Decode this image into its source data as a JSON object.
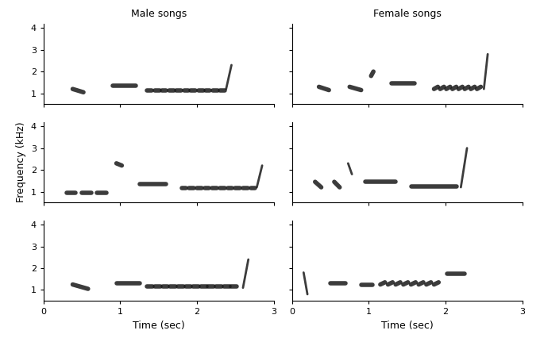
{
  "chart_data": [
    {
      "type": "spectrogram",
      "title": "Male songs",
      "color": "#1a1a1a",
      "xlim": [
        0,
        3
      ],
      "ylim": [
        0.5,
        4.2
      ],
      "xticks": [
        0,
        1,
        2,
        3
      ],
      "yticks": [
        1,
        2,
        3,
        4
      ],
      "tick_labels": "y",
      "notes": [
        {
          "time": [
            0.38,
            0.52
          ],
          "freq": [
            1.2,
            1.05
          ]
        },
        {
          "time": [
            0.9,
            1.2
          ],
          "freq": [
            1.35,
            1.35
          ]
        },
        {
          "time": [
            1.35,
            1.41
          ],
          "freq": [
            1.15,
            1.15
          ]
        },
        {
          "time": [
            1.45,
            1.51
          ],
          "freq": [
            1.15,
            1.15
          ]
        },
        {
          "time": [
            1.54,
            1.6
          ],
          "freq": [
            1.15,
            1.15
          ]
        },
        {
          "time": [
            1.64,
            1.7
          ],
          "freq": [
            1.15,
            1.15
          ]
        },
        {
          "time": [
            1.73,
            1.79
          ],
          "freq": [
            1.15,
            1.15
          ]
        },
        {
          "time": [
            1.83,
            1.89
          ],
          "freq": [
            1.15,
            1.15
          ]
        },
        {
          "time": [
            1.92,
            1.98
          ],
          "freq": [
            1.15,
            1.15
          ]
        },
        {
          "time": [
            2.02,
            2.08
          ],
          "freq": [
            1.15,
            1.15
          ]
        },
        {
          "time": [
            2.11,
            2.17
          ],
          "freq": [
            1.15,
            1.15
          ]
        },
        {
          "time": [
            2.21,
            2.27
          ],
          "freq": [
            1.15,
            1.15
          ]
        },
        {
          "time": [
            2.3,
            2.36
          ],
          "freq": [
            1.15,
            1.15
          ]
        },
        {
          "time": [
            2.38,
            2.45
          ],
          "freq": [
            1.2,
            2.3
          ]
        }
      ]
    },
    {
      "type": "spectrogram",
      "title": "Female songs",
      "color": "#1a1a1a",
      "xlim": [
        0,
        3
      ],
      "ylim": [
        0.5,
        4.2
      ],
      "xticks": [
        0,
        1,
        2,
        3
      ],
      "yticks": [
        1,
        2,
        3,
        4
      ],
      "tick_labels": false,
      "notes": [
        {
          "time": [
            0.35,
            0.48
          ],
          "freq": [
            1.3,
            1.15
          ]
        },
        {
          "time": [
            0.75,
            0.9
          ],
          "freq": [
            1.3,
            1.15
          ]
        },
        {
          "time": [
            1.03,
            1.06
          ],
          "freq": [
            1.8,
            2.0
          ]
        },
        {
          "time": [
            1.3,
            1.6
          ],
          "freq": [
            1.45,
            1.45
          ]
        },
        {
          "time": [
            1.85,
            1.9
          ],
          "freq": [
            1.2,
            1.3
          ]
        },
        {
          "time": [
            1.93,
            1.98
          ],
          "freq": [
            1.2,
            1.3
          ]
        },
        {
          "time": [
            2.01,
            2.06
          ],
          "freq": [
            1.2,
            1.3
          ]
        },
        {
          "time": [
            2.09,
            2.14
          ],
          "freq": [
            1.2,
            1.3
          ]
        },
        {
          "time": [
            2.17,
            2.22
          ],
          "freq": [
            1.2,
            1.3
          ]
        },
        {
          "time": [
            2.25,
            2.3
          ],
          "freq": [
            1.2,
            1.3
          ]
        },
        {
          "time": [
            2.33,
            2.38
          ],
          "freq": [
            1.2,
            1.3
          ]
        },
        {
          "time": [
            2.41,
            2.46
          ],
          "freq": [
            1.2,
            1.3
          ]
        },
        {
          "time": [
            2.5,
            2.55
          ],
          "freq": [
            1.2,
            2.8
          ]
        }
      ]
    },
    {
      "type": "spectrogram",
      "y_label": "Frequency (kHz)",
      "color": "#1a1a1a",
      "xlim": [
        0,
        3
      ],
      "ylim": [
        0.5,
        4.2
      ],
      "xticks": [
        0,
        1,
        2,
        3
      ],
      "yticks": [
        1,
        2,
        3,
        4
      ],
      "tick_labels": "y",
      "notes": [
        {
          "time": [
            0.3,
            0.42
          ],
          "freq": [
            0.95,
            0.95
          ]
        },
        {
          "time": [
            0.5,
            0.62
          ],
          "freq": [
            0.95,
            0.95
          ]
        },
        {
          "time": [
            0.7,
            0.82
          ],
          "freq": [
            0.95,
            0.95
          ]
        },
        {
          "time": [
            0.95,
            1.02
          ],
          "freq": [
            2.3,
            2.2
          ]
        },
        {
          "time": [
            1.25,
            1.6
          ],
          "freq": [
            1.35,
            1.35
          ]
        },
        {
          "time": [
            1.8,
            1.86
          ],
          "freq": [
            1.15,
            1.15
          ]
        },
        {
          "time": [
            1.9,
            1.96
          ],
          "freq": [
            1.15,
            1.15
          ]
        },
        {
          "time": [
            2.0,
            2.06
          ],
          "freq": [
            1.15,
            1.15
          ]
        },
        {
          "time": [
            2.1,
            2.16
          ],
          "freq": [
            1.15,
            1.15
          ]
        },
        {
          "time": [
            2.2,
            2.26
          ],
          "freq": [
            1.15,
            1.15
          ]
        },
        {
          "time": [
            2.3,
            2.36
          ],
          "freq": [
            1.15,
            1.15
          ]
        },
        {
          "time": [
            2.4,
            2.46
          ],
          "freq": [
            1.15,
            1.15
          ]
        },
        {
          "time": [
            2.5,
            2.56
          ],
          "freq": [
            1.15,
            1.15
          ]
        },
        {
          "time": [
            2.6,
            2.66
          ],
          "freq": [
            1.15,
            1.15
          ]
        },
        {
          "time": [
            2.7,
            2.76
          ],
          "freq": [
            1.15,
            1.15
          ]
        },
        {
          "time": [
            2.78,
            2.85
          ],
          "freq": [
            1.2,
            2.2
          ]
        }
      ]
    },
    {
      "type": "spectrogram",
      "color": "#1a1a1a",
      "xlim": [
        0,
        3
      ],
      "ylim": [
        0.5,
        4.2
      ],
      "xticks": [
        0,
        1,
        2,
        3
      ],
      "yticks": [
        1,
        2,
        3,
        4
      ],
      "tick_labels": false,
      "notes": [
        {
          "time": [
            0.3,
            0.38
          ],
          "freq": [
            1.45,
            1.2
          ]
        },
        {
          "time": [
            0.55,
            0.62
          ],
          "freq": [
            1.45,
            1.2
          ]
        },
        {
          "time": [
            0.73,
            0.78
          ],
          "freq": [
            2.3,
            1.8
          ]
        },
        {
          "time": [
            0.95,
            1.35
          ],
          "freq": [
            1.45,
            1.45
          ]
        },
        {
          "time": [
            1.55,
            2.15
          ],
          "freq": [
            1.25,
            1.25
          ]
        },
        {
          "time": [
            2.2,
            2.28
          ],
          "freq": [
            1.2,
            3.0
          ]
        }
      ]
    },
    {
      "type": "spectrogram",
      "x_label": "Time (sec)",
      "color": "#1a1a1a",
      "xlim": [
        0,
        3
      ],
      "ylim": [
        0.5,
        4.2
      ],
      "xticks": [
        0,
        1,
        2,
        3
      ],
      "yticks": [
        1,
        2,
        3,
        4
      ],
      "tick_labels": true,
      "notes": [
        {
          "time": [
            0.38,
            0.58
          ],
          "freq": [
            1.25,
            1.05
          ]
        },
        {
          "time": [
            0.95,
            1.25
          ],
          "freq": [
            1.3,
            1.3
          ]
        },
        {
          "time": [
            1.35,
            1.42
          ],
          "freq": [
            1.15,
            1.15
          ]
        },
        {
          "time": [
            1.45,
            1.52
          ],
          "freq": [
            1.15,
            1.15
          ]
        },
        {
          "time": [
            1.55,
            1.62
          ],
          "freq": [
            1.15,
            1.15
          ]
        },
        {
          "time": [
            1.65,
            1.72
          ],
          "freq": [
            1.15,
            1.15
          ]
        },
        {
          "time": [
            1.75,
            1.82
          ],
          "freq": [
            1.15,
            1.15
          ]
        },
        {
          "time": [
            1.85,
            1.92
          ],
          "freq": [
            1.15,
            1.15
          ]
        },
        {
          "time": [
            1.95,
            2.02
          ],
          "freq": [
            1.15,
            1.15
          ]
        },
        {
          "time": [
            2.05,
            2.12
          ],
          "freq": [
            1.15,
            1.15
          ]
        },
        {
          "time": [
            2.15,
            2.22
          ],
          "freq": [
            1.15,
            1.15
          ]
        },
        {
          "time": [
            2.25,
            2.32
          ],
          "freq": [
            1.15,
            1.15
          ]
        },
        {
          "time": [
            2.35,
            2.42
          ],
          "freq": [
            1.15,
            1.15
          ]
        },
        {
          "time": [
            2.45,
            2.52
          ],
          "freq": [
            1.15,
            1.15
          ]
        },
        {
          "time": [
            2.6,
            2.67
          ],
          "freq": [
            1.1,
            2.4
          ]
        }
      ]
    },
    {
      "type": "spectrogram",
      "x_label": "Time (sec)",
      "color": "#1a1a1a",
      "xlim": [
        0,
        3
      ],
      "ylim": [
        0.5,
        4.2
      ],
      "xticks": [
        0,
        1,
        2,
        3
      ],
      "yticks": [
        1,
        2,
        3,
        4
      ],
      "tick_labels": "x",
      "notes": [
        {
          "time": [
            0.15,
            0.2
          ],
          "freq": [
            1.8,
            0.8
          ]
        },
        {
          "time": [
            0.5,
            0.7
          ],
          "freq": [
            1.3,
            1.3
          ]
        },
        {
          "time": [
            0.9,
            1.05
          ],
          "freq": [
            1.25,
            1.25
          ]
        },
        {
          "time": [
            1.15,
            1.21
          ],
          "freq": [
            1.25,
            1.35
          ]
        },
        {
          "time": [
            1.25,
            1.31
          ],
          "freq": [
            1.25,
            1.35
          ]
        },
        {
          "time": [
            1.35,
            1.41
          ],
          "freq": [
            1.25,
            1.35
          ]
        },
        {
          "time": [
            1.45,
            1.51
          ],
          "freq": [
            1.25,
            1.35
          ]
        },
        {
          "time": [
            1.55,
            1.61
          ],
          "freq": [
            1.25,
            1.35
          ]
        },
        {
          "time": [
            1.65,
            1.71
          ],
          "freq": [
            1.25,
            1.35
          ]
        },
        {
          "time": [
            1.75,
            1.81
          ],
          "freq": [
            1.25,
            1.35
          ]
        },
        {
          "time": [
            1.85,
            1.91
          ],
          "freq": [
            1.25,
            1.35
          ]
        },
        {
          "time": [
            2.02,
            2.25
          ],
          "freq": [
            1.75,
            1.75
          ]
        }
      ]
    }
  ]
}
